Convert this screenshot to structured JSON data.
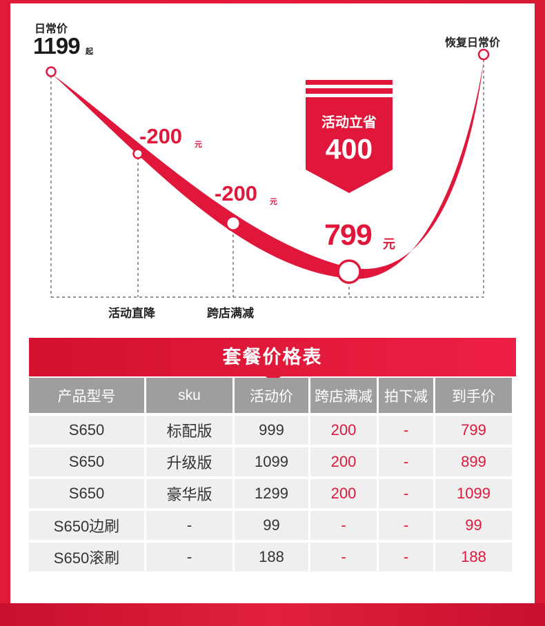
{
  "curve": {
    "daily_price_label": "日常价",
    "start_price": "1199",
    "start_price_suffix": "起",
    "restore_label": "恢复日常价",
    "discount_1": "-200",
    "discount_1_unit": "元",
    "discount_2": "-200",
    "discount_2_unit": "元",
    "final_price": "799",
    "final_price_unit": "元",
    "step_labels": [
      "活动直降",
      "跨店满减"
    ],
    "save_badge": {
      "title": "活动立省",
      "amount": "400"
    }
  },
  "table": {
    "title": "套餐价格表",
    "headers": [
      "产品型号",
      "sku",
      "活动价",
      "跨店满减",
      "拍下减",
      "到手价"
    ],
    "rows": [
      [
        "S650",
        "标配版",
        "999",
        "200",
        "-",
        "799"
      ],
      [
        "S650",
        "升级版",
        "1099",
        "200",
        "-",
        "899"
      ],
      [
        "S650",
        "豪华版",
        "1299",
        "200",
        "-",
        "1099"
      ],
      [
        "S650边刷",
        "-",
        "99",
        "-",
        "-",
        "99"
      ],
      [
        "S650滚刷",
        "-",
        "188",
        "-",
        "-",
        "188"
      ]
    ]
  },
  "colors": {
    "accent_red": "#e0173b",
    "header_gray": "#9e9e9e",
    "row_bg": "#efefef"
  }
}
